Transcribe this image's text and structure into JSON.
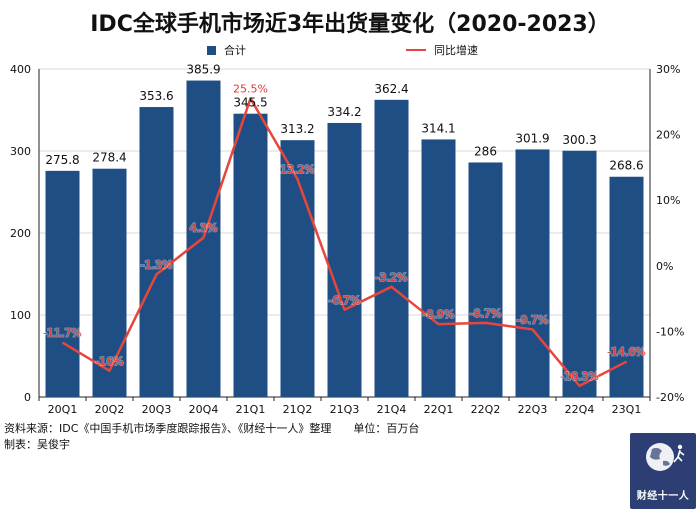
{
  "title": "IDC全球手机市场近3年出货量变化（2020-2023）",
  "legend": {
    "bar_label": "合计",
    "line_label": "同比增速"
  },
  "footer": {
    "source": "资料来源：IDC《中国手机市场季度跟踪报告》、《财经十一人》整理　　单位：百万台",
    "author": "制表：吴俊宇"
  },
  "logo": {
    "text": "财经十一人",
    "icon": "globe-runner-icon"
  },
  "colors": {
    "bar": "#1f4e85",
    "line": "#e8463b",
    "label": "#e03a2f"
  },
  "chart_data": {
    "type": "bar+line",
    "categories": [
      "20Q1",
      "20Q2",
      "20Q3",
      "20Q4",
      "21Q1",
      "21Q2",
      "21Q3",
      "21Q4",
      "22Q1",
      "22Q2",
      "22Q3",
      "22Q4",
      "23Q1"
    ],
    "series": [
      {
        "name": "合计",
        "type": "bar",
        "axis": "left",
        "values": [
          275.8,
          278.4,
          353.6,
          385.9,
          345.5,
          313.2,
          334.2,
          362.4,
          314.1,
          286,
          301.9,
          300.3,
          268.6
        ],
        "labels": [
          "275.8",
          "278.4",
          "353.6",
          "385.9",
          "345.5",
          "313.2",
          "334.2",
          "362.4",
          "314.1",
          "286",
          "301.9",
          "300.3",
          "268.6"
        ]
      },
      {
        "name": "同比增速",
        "type": "line",
        "axis": "right",
        "values": [
          -11.7,
          -16,
          -1.3,
          4.3,
          25.5,
          13.2,
          -6.7,
          -3.2,
          -8.9,
          -8.7,
          -9.7,
          -18.3,
          -14.6
        ],
        "labels": [
          "-11.7%",
          "-16%",
          "-1.3%",
          "4.3%",
          "25.5%",
          "13.2%",
          "-6.7%",
          "-3.2%",
          "-8.9%",
          "-8.7%",
          "-9.7%",
          "-18.3%",
          "-14.6%"
        ]
      }
    ],
    "left_axis": {
      "min": 0,
      "max": 400,
      "ticks": [
        "0",
        "100",
        "200",
        "300",
        "400"
      ],
      "tick_values": [
        0,
        100,
        200,
        300,
        400
      ]
    },
    "right_axis": {
      "min": -20,
      "max": 30,
      "ticks": [
        "-20%",
        "-10%",
        "0%",
        "10%",
        "20%",
        "30%"
      ],
      "tick_values": [
        -20,
        -10,
        0,
        10,
        20,
        30
      ]
    },
    "grid": true,
    "legend_position": "top"
  }
}
